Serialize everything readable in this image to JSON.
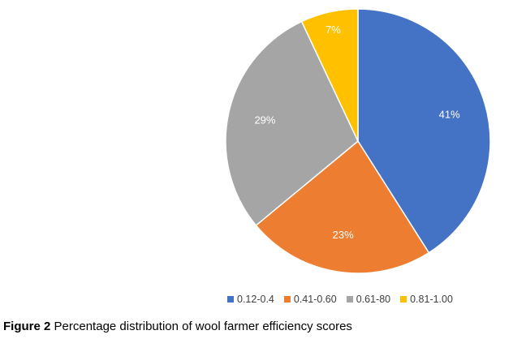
{
  "chart_data": {
    "type": "pie",
    "categories": [
      "0.12-0.4",
      "0.41-0.60",
      "0.61-80",
      "0.81-1.00"
    ],
    "values": [
      41,
      23,
      29,
      7
    ],
    "value_labels": [
      "41%",
      "23%",
      "29%",
      "7%"
    ],
    "colors": [
      "#4472C4",
      "#ED7D31",
      "#A5A5A5",
      "#FFC000"
    ],
    "legend_position": "bottom"
  },
  "caption": {
    "prefix": "Figure 2",
    "text": " Percentage distribution of wool farmer efficiency scores"
  }
}
